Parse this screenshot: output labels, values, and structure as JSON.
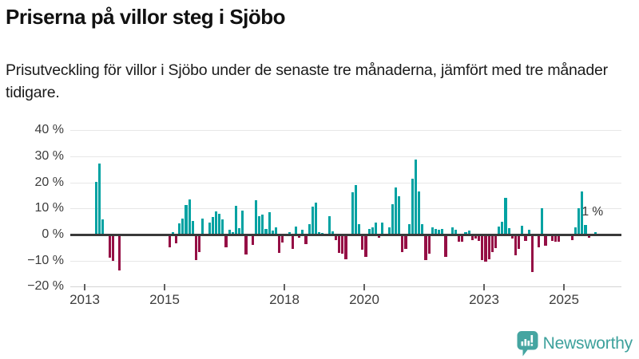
{
  "header": {
    "title": "Priserna på villor steg i Sjöbo",
    "subtitle": "Prisutveckling för villor i Sjöbo under de senaste tre månaderna, jämfört med tre månader tidigare."
  },
  "footer": {
    "brand": "Newsworthy"
  },
  "chart_data": {
    "type": "bar",
    "title": "Prisutveckling för villor i Sjöbo, 3 månader jämfört med 3 månader tidigare",
    "unit": "%",
    "ylim": [
      -20,
      40
    ],
    "grid": true,
    "yticks": [
      {
        "value": 40,
        "label": "40 %"
      },
      {
        "value": 30,
        "label": "30 %"
      },
      {
        "value": 20,
        "label": "20 %"
      },
      {
        "value": 10,
        "label": "10 %"
      },
      {
        "value": 0,
        "label": "0 %"
      },
      {
        "value": -10,
        "label": "−10 %"
      },
      {
        "value": -20,
        "label": "−20 %"
      }
    ],
    "xticks": [
      {
        "year": 2013,
        "label": "2013"
      },
      {
        "year": 2015,
        "label": "2015"
      },
      {
        "year": 2018,
        "label": "2018"
      },
      {
        "year": 2020,
        "label": "2020"
      },
      {
        "year": 2023,
        "label": "2023"
      },
      {
        "year": 2025,
        "label": "2025"
      }
    ],
    "annotation": {
      "text": "1 %",
      "month": "2025-10",
      "value": 1
    },
    "colors": {
      "positive": "#00a2a2",
      "negative": "#950f45"
    },
    "series": [
      [
        "2013-04",
        20.3
      ],
      [
        "2013-05",
        27.2
      ],
      [
        "2013-06",
        5.8
      ],
      [
        "2013-08",
        -9
      ],
      [
        "2013-09",
        -10
      ],
      [
        "2013-11",
        -13.8
      ],
      [
        "2015-02",
        -4.9
      ],
      [
        "2015-03",
        1
      ],
      [
        "2015-04",
        -3.4
      ],
      [
        "2015-05",
        4.2
      ],
      [
        "2015-06",
        6.2
      ],
      [
        "2015-07",
        11.4
      ],
      [
        "2015-08",
        13.5
      ],
      [
        "2015-09",
        5.2
      ],
      [
        "2015-10",
        -9.7
      ],
      [
        "2015-11",
        -6.7
      ],
      [
        "2015-12",
        6.2
      ],
      [
        "2016-02",
        4.5
      ],
      [
        "2016-03",
        6.8
      ],
      [
        "2016-04",
        9
      ],
      [
        "2016-05",
        7.8
      ],
      [
        "2016-06",
        5.7
      ],
      [
        "2016-07",
        -4.9
      ],
      [
        "2016-08",
        1.8
      ],
      [
        "2016-09",
        1
      ],
      [
        "2016-10",
        10.9
      ],
      [
        "2016-11",
        2.3
      ],
      [
        "2016-12",
        9.1
      ],
      [
        "2017-01",
        -7.5
      ],
      [
        "2017-03",
        -4.1
      ],
      [
        "2017-04",
        13.2
      ],
      [
        "2017-05",
        7
      ],
      [
        "2017-06",
        7.5
      ],
      [
        "2017-07",
        2.1
      ],
      [
        "2017-08",
        8.5
      ],
      [
        "2017-09",
        1.5
      ],
      [
        "2017-10",
        2.8
      ],
      [
        "2017-11",
        -7.1
      ],
      [
        "2017-12",
        -3.1
      ],
      [
        "2018-02",
        1
      ],
      [
        "2018-03",
        -5.5
      ],
      [
        "2018-04",
        3.1
      ],
      [
        "2018-05",
        -1.2
      ],
      [
        "2018-06",
        1.8
      ],
      [
        "2018-07",
        -3.8
      ],
      [
        "2018-08",
        3.9
      ],
      [
        "2018-09",
        10.7
      ],
      [
        "2018-10",
        12.2
      ],
      [
        "2018-11",
        0.8
      ],
      [
        "2018-12",
        0.5
      ],
      [
        "2019-02",
        7
      ],
      [
        "2019-03",
        1.3
      ],
      [
        "2019-04",
        -2.2
      ],
      [
        "2019-05",
        -7.1
      ],
      [
        "2019-06",
        -7.3
      ],
      [
        "2019-07",
        -9.5
      ],
      [
        "2019-09",
        16.2
      ],
      [
        "2019-10",
        19
      ],
      [
        "2019-11",
        3.9
      ],
      [
        "2019-12",
        -5.8
      ],
      [
        "2020-01",
        -8.7
      ],
      [
        "2020-02",
        2
      ],
      [
        "2020-03",
        2.8
      ],
      [
        "2020-04",
        4.6
      ],
      [
        "2020-05",
        -1.2
      ],
      [
        "2020-06",
        4.6
      ],
      [
        "2020-08",
        2.8
      ],
      [
        "2020-09",
        11.6
      ],
      [
        "2020-10",
        18.1
      ],
      [
        "2020-11",
        14.8
      ],
      [
        "2020-12",
        -6.6
      ],
      [
        "2021-01",
        -5.6
      ],
      [
        "2021-02",
        3.9
      ],
      [
        "2021-03",
        21.4
      ],
      [
        "2021-04",
        28.6
      ],
      [
        "2021-05",
        16.5
      ],
      [
        "2021-06",
        3.9
      ],
      [
        "2021-07",
        -9.7
      ],
      [
        "2021-08",
        -7.3
      ],
      [
        "2021-09",
        2.9
      ],
      [
        "2021-10",
        2
      ],
      [
        "2021-11",
        1.8
      ],
      [
        "2021-12",
        2
      ],
      [
        "2022-01",
        -8.6
      ],
      [
        "2022-03",
        2.6
      ],
      [
        "2022-04",
        1.8
      ],
      [
        "2022-05",
        -2.8
      ],
      [
        "2022-06",
        -2.8
      ],
      [
        "2022-07",
        1
      ],
      [
        "2022-08",
        1.5
      ],
      [
        "2022-09",
        -2.1
      ],
      [
        "2022-10",
        -1.5
      ],
      [
        "2022-11",
        -2.5
      ],
      [
        "2022-12",
        -9.9
      ],
      [
        "2023-01",
        -10.4
      ],
      [
        "2023-02",
        -9.6
      ],
      [
        "2023-03",
        -6.8
      ],
      [
        "2023-04",
        -5.2
      ],
      [
        "2023-05",
        3
      ],
      [
        "2023-06",
        4.9
      ],
      [
        "2023-07",
        14
      ],
      [
        "2023-08",
        2.3
      ],
      [
        "2023-09",
        -1.5
      ],
      [
        "2023-10",
        -8
      ],
      [
        "2023-11",
        -5.6
      ],
      [
        "2023-12",
        3.3
      ],
      [
        "2024-01",
        -2.3
      ],
      [
        "2024-02",
        1.8
      ],
      [
        "2024-03",
        -14.5
      ],
      [
        "2024-05",
        -5
      ],
      [
        "2024-06",
        10
      ],
      [
        "2024-07",
        -4.3
      ],
      [
        "2024-09",
        -2.3
      ],
      [
        "2024-10",
        -2.9
      ],
      [
        "2024-11",
        -2.9
      ],
      [
        "2025-03",
        -2.2
      ],
      [
        "2025-04",
        2.6
      ],
      [
        "2025-05",
        10.1
      ],
      [
        "2025-06",
        16.5
      ],
      [
        "2025-07",
        3.8
      ],
      [
        "2025-08",
        -1.2
      ],
      [
        "2025-10",
        1
      ]
    ]
  }
}
